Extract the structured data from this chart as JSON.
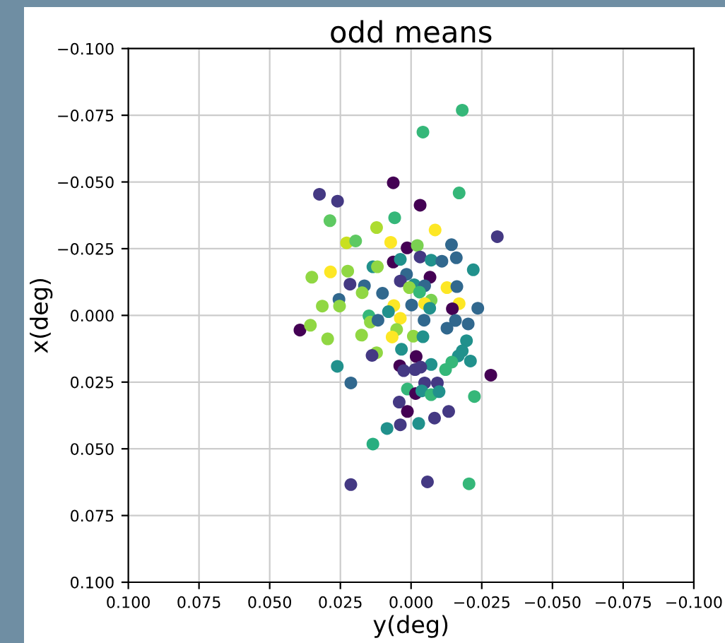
{
  "chart_data": {
    "type": "scatter",
    "title": "odd means",
    "xlabel": "y(deg)",
    "ylabel": "x(deg)",
    "xlim": [
      0.1,
      -0.1
    ],
    "ylim": [
      0.1,
      -0.1
    ],
    "xticks": [
      {
        "value": 0.1,
        "label": "0.100"
      },
      {
        "value": 0.075,
        "label": "0.075"
      },
      {
        "value": 0.05,
        "label": "0.050"
      },
      {
        "value": 0.025,
        "label": "0.025"
      },
      {
        "value": 0,
        "label": "0.000"
      },
      {
        "value": -0.025,
        "label": "−0.025"
      },
      {
        "value": -0.05,
        "label": "−0.050"
      },
      {
        "value": -0.075,
        "label": "−0.075"
      },
      {
        "value": -0.1,
        "label": "−0.100"
      }
    ],
    "yticks": [
      {
        "value": 0.1,
        "label": "0.100"
      },
      {
        "value": 0.075,
        "label": "0.075"
      },
      {
        "value": 0.05,
        "label": "0.050"
      },
      {
        "value": 0.025,
        "label": "0.025"
      },
      {
        "value": 0,
        "label": "0.000"
      },
      {
        "value": -0.025,
        "label": "−0.025"
      },
      {
        "value": -0.05,
        "label": "−0.050"
      },
      {
        "value": -0.075,
        "label": "−0.075"
      },
      {
        "value": -0.1,
        "label": "−0.100"
      }
    ],
    "grid": true,
    "marker": "circle",
    "x": [
      -0.0181,
      -0.0042,
      0.0063,
      -0.017,
      0.0324,
      0.026,
      -0.0032,
      0.0287,
      0.0058,
      0.0122,
      -0.0085,
      -0.0305,
      0.0072,
      0.0228,
      0.0196,
      0.0014,
      -0.0022,
      -0.0143,
      -0.0032,
      -0.0071,
      -0.0109,
      -0.016,
      0.0063,
      0.0038,
      -0.022,
      0.0135,
      0.0119,
      0.0285,
      0.0224,
      0.0351,
      0.0016,
      -0.0067,
      0.0216,
      0.0165,
      0.0038,
      -0.0011,
      -0.0048,
      -0.0127,
      -0.0162,
      0.0173,
      0.0101,
      0.0006,
      -0.003,
      0.0255,
      -0.0071,
      0.0314,
      0.0253,
      0.0061,
      -0.0002,
      -0.0048,
      -0.0066,
      -0.017,
      -0.0146,
      -0.0236,
      0.008,
      0.0149,
      0.0144,
      0.0117,
      0.0038,
      -0.0046,
      -0.0157,
      -0.0127,
      -0.0202,
      0.0393,
      0.0356,
      0.0175,
      0.0295,
      0.0051,
      0.0067,
      -0.0008,
      -0.0042,
      -0.0196,
      0.0034,
      -0.0181,
      0.0122,
      0.0138,
      -0.0018,
      -0.0167,
      -0.021,
      0.0261,
      0.004,
      -0.0144,
      -0.0071,
      -0.0122,
      0.0026,
      -0.0014,
      -0.0034,
      -0.0282,
      0.0213,
      -0.0048,
      -0.0093,
      0.0013,
      -0.0016,
      -0.0038,
      -0.0071,
      -0.0099,
      -0.0224,
      0.0042,
      0.0013,
      -0.0133,
      -0.0083,
      -0.0027,
      0.0038,
      0.0085,
      0.0135,
      0.0213,
      -0.0058,
      -0.0205
    ],
    "values": [
      -0.0769,
      -0.0687,
      -0.0497,
      -0.0459,
      -0.0454,
      -0.0428,
      -0.0413,
      -0.0355,
      -0.0366,
      -0.0329,
      -0.032,
      -0.0295,
      -0.0274,
      -0.0272,
      -0.0279,
      -0.0253,
      -0.0262,
      -0.0265,
      -0.0219,
      -0.0207,
      -0.0203,
      -0.0216,
      -0.02,
      -0.021,
      -0.0171,
      -0.0182,
      -0.0182,
      -0.0163,
      -0.0166,
      -0.0143,
      -0.0154,
      -0.0143,
      -0.0117,
      -0.0111,
      -0.0129,
      -0.0115,
      -0.0111,
      -0.0104,
      -0.0108,
      -0.0085,
      -0.0083,
      -0.0104,
      -0.0087,
      -0.006,
      -0.0057,
      -0.0035,
      -0.0035,
      -0.0037,
      -0.0039,
      -0.0044,
      -0.0027,
      -0.0044,
      -0.0025,
      -0.0027,
      -0.0014,
      0.0002,
      0.0025,
      0.0018,
      0.0011,
      0.0018,
      0.0019,
      0.0048,
      0.0032,
      0.0055,
      0.0037,
      0.0074,
      0.0088,
      0.0053,
      0.0081,
      0.0078,
      0.008,
      0.0095,
      0.0127,
      0.0133,
      0.014,
      0.015,
      0.0154,
      0.0152,
      0.0171,
      0.0191,
      0.0189,
      0.0175,
      0.0184,
      0.0203,
      0.0207,
      0.0203,
      0.0194,
      0.0224,
      0.0253,
      0.0253,
      0.0253,
      0.0276,
      0.0293,
      0.0283,
      0.0297,
      0.0286,
      0.0304,
      0.0325,
      0.036,
      0.036,
      0.0385,
      0.0405,
      0.041,
      0.0424,
      0.0482,
      0.0634,
      0.0624,
      0.0631
    ],
    "colors": [
      "#35b779",
      "#35b779",
      "#440154",
      "#35b779",
      "#443983",
      "#443983",
      "#440154",
      "#5ec962",
      "#35b779",
      "#addc30",
      "#fde725",
      "#443983",
      "#fde725",
      "#c8e020",
      "#5ec962",
      "#440154",
      "#7ad151",
      "#31688e",
      "#443983",
      "#21918c",
      "#31688e",
      "#31688e",
      "#440154",
      "#21918c",
      "#21918c",
      "#21918c",
      "#90d743",
      "#fde725",
      "#90d743",
      "#90d743",
      "#31688e",
      "#440154",
      "#443983",
      "#31688e",
      "#443983",
      "#21918c",
      "#31688e",
      "#fde725",
      "#31688e",
      "#90d743",
      "#31688e",
      "#90d743",
      "#35b779",
      "#31688e",
      "#7ad151",
      "#90d743",
      "#90d743",
      "#fde725",
      "#31688e",
      "#fde725",
      "#21918c",
      "#fde725",
      "#440154",
      "#31688e",
      "#21918c",
      "#35b779",
      "#90d743",
      "#31688e",
      "#fde725",
      "#31688e",
      "#31688e",
      "#31688e",
      "#31688e",
      "#440154",
      "#90d743",
      "#90d743",
      "#90d743",
      "#90d743",
      "#fde725",
      "#90d743",
      "#21918c",
      "#21918c",
      "#21918c",
      "#21918c",
      "#90d743",
      "#443983",
      "#440154",
      "#21918c",
      "#21918c",
      "#21918c",
      "#440154",
      "#35b779",
      "#21918c",
      "#35b779",
      "#443983",
      "#443983",
      "#443983",
      "#440154",
      "#31688e",
      "#443983",
      "#443983",
      "#35b779",
      "#440154",
      "#21918c",
      "#35b779",
      "#21918c",
      "#35b779",
      "#443983",
      "#440154",
      "#443983",
      "#443983",
      "#21918c",
      "#443983",
      "#21918c",
      "#28ae80",
      "#443983",
      "#443983",
      "#35b779"
    ]
  }
}
